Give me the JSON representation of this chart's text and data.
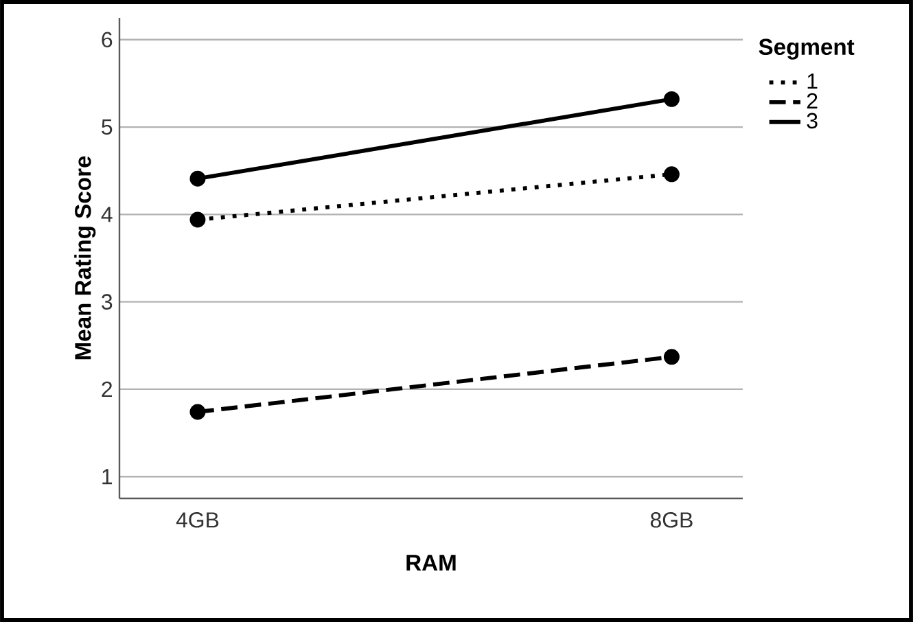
{
  "chart_data": {
    "type": "line",
    "xlabel": "RAM",
    "ylabel": "Mean Rating Score",
    "legend_title": "Segment",
    "categories": [
      "4GB",
      "8GB"
    ],
    "series": [
      {
        "name": "1",
        "color": "#000000",
        "line_style": "dotted",
        "values": [
          3.94,
          4.46
        ]
      },
      {
        "name": "2",
        "color": "#000000",
        "line_style": "dashed",
        "values": [
          1.74,
          2.37
        ]
      },
      {
        "name": "3",
        "color": "#000000",
        "line_style": "solid",
        "values": [
          4.41,
          5.32
        ]
      }
    ],
    "ylim": [
      0.75,
      6.25
    ],
    "yticks": [
      1,
      2,
      3,
      4,
      5,
      6
    ],
    "grid": "y",
    "legend": "top right",
    "marker": "circle"
  }
}
